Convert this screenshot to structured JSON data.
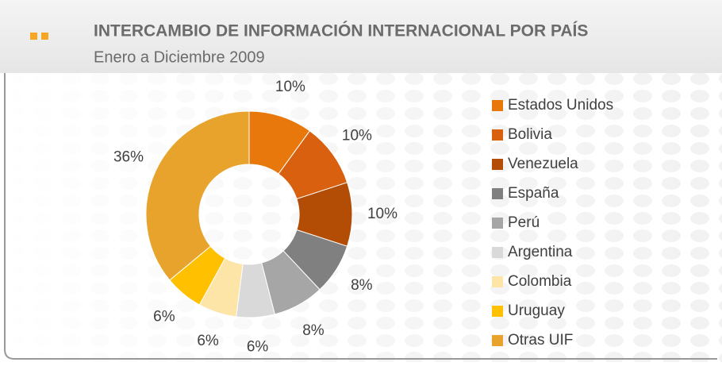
{
  "chart_data": {
    "type": "pie",
    "title": "INTERCAMBIO DE INFORMACIÓN INTERNACIONAL POR PAÍS",
    "subtitle": "Enero a Diciembre 2009",
    "categories": [
      "Estados Unidos",
      "Bolivia",
      "Venezuela",
      "España",
      "Perú",
      "Argentina",
      "Colombia",
      "Uruguay",
      "Otras UIF"
    ],
    "values": [
      10,
      10,
      10,
      8,
      8,
      6,
      6,
      6,
      36
    ],
    "value_labels": [
      "10%",
      "10%",
      "10%",
      "8%",
      "8%",
      "6%",
      "6%",
      "6%",
      "36%"
    ],
    "colors": [
      "#e8780c",
      "#d9600e",
      "#b34d06",
      "#808080",
      "#a6a6a6",
      "#d9d9d9",
      "#fde5a8",
      "#ffc000",
      "#e8a32c"
    ],
    "donut": true
  }
}
